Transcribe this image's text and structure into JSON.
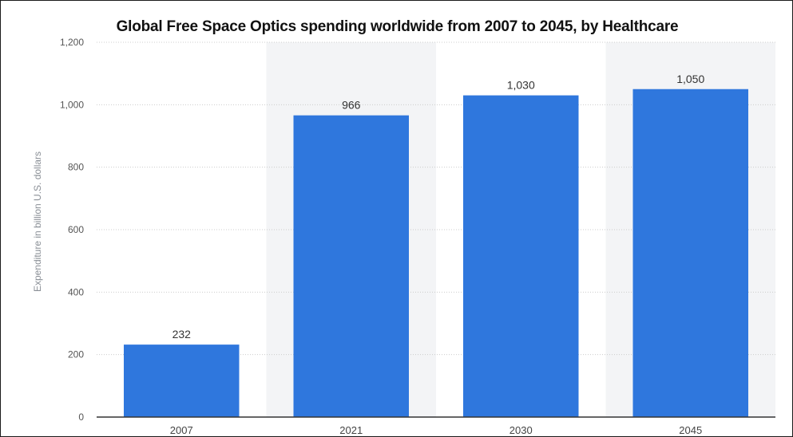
{
  "chart_data": {
    "type": "bar",
    "title": "Global Free Space Optics spending worldwide from 2007 to 2045, by Healthcare",
    "xlabel": "",
    "ylabel": "Expenditure in billion U.S. dollars",
    "categories": [
      "2007",
      "2021",
      "2030",
      "2045"
    ],
    "values": [
      232,
      966,
      1030,
      1050
    ],
    "value_labels": [
      "232",
      "966",
      "1,030",
      "1,050"
    ],
    "ylim": [
      0,
      1200
    ],
    "yticks": [
      0,
      200,
      400,
      600,
      800,
      1000,
      1200
    ],
    "ytick_labels": [
      "0",
      "200",
      "400",
      "600",
      "800",
      "1,000",
      "1,200"
    ],
    "grid": true,
    "bar_color": "#2f77dd",
    "alt_band_color": "#f3f4f6"
  }
}
